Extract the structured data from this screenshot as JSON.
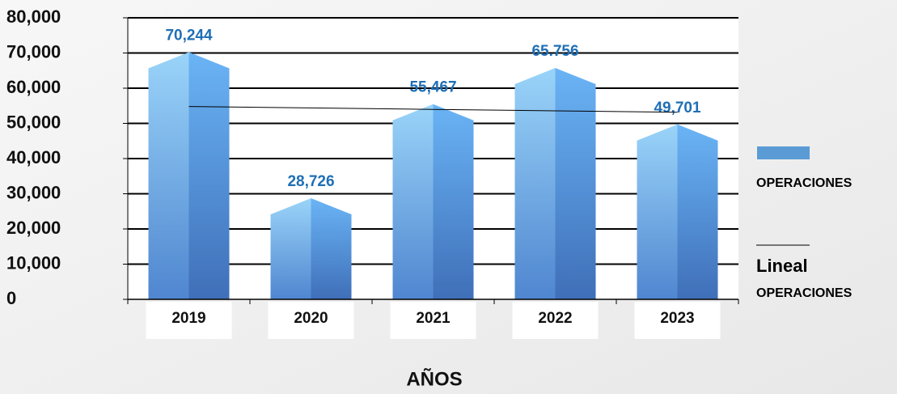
{
  "chart_data": {
    "type": "bar",
    "categories": [
      "2019",
      "2020",
      "2021",
      "2022",
      "2023"
    ],
    "series": [
      {
        "name": "OPERACIONES",
        "color": "#5b9bd5",
        "values": [
          70244,
          28726,
          55467,
          65756,
          49701
        ],
        "value_labels": [
          "70,244",
          "28,726",
          "55,467",
          "65.756",
          "49,701"
        ]
      }
    ],
    "trendline": {
      "label": "Lineal",
      "sublabel": "OPERACIONES",
      "color": "#000000",
      "values": [
        54790,
        54385,
        53979,
        53573,
        53168
      ]
    },
    "x_label": "AÑOS",
    "ylim": [
      0,
      80000
    ],
    "yticks": [
      {
        "value": 0,
        "label": "0"
      },
      {
        "value": 10000,
        "label": "10,000"
      },
      {
        "value": 20000,
        "label": "20,000"
      },
      {
        "value": 30000,
        "label": "30,000"
      },
      {
        "value": 40000,
        "label": "40,000"
      },
      {
        "value": 50000,
        "label": "50,000"
      },
      {
        "value": 60000,
        "label": "60,000"
      },
      {
        "value": 70000,
        "label": "70,000"
      },
      {
        "value": 80000,
        "label": "80,000"
      }
    ],
    "grid": true,
    "legend": "right"
  }
}
